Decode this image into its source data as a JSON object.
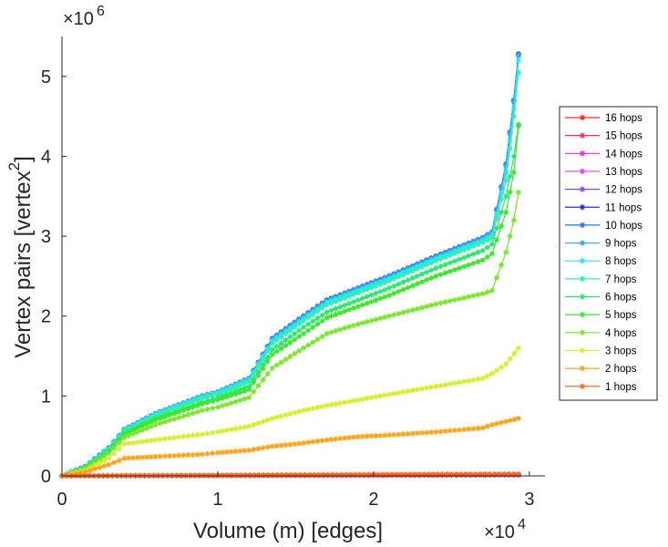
{
  "chart_data": {
    "type": "line",
    "xlabel": "Volume (m) [edges]",
    "ylabel_main": "Vertex pairs [vertex",
    "ylabel_sup": "2",
    "ylabel_end": "]",
    "x_multiplier": {
      "base": "×10",
      "exp": "4"
    },
    "y_multiplier": {
      "base": "×10",
      "exp": "6"
    },
    "xlim": [
      0,
      3.1
    ],
    "ylim": [
      0,
      5.5
    ],
    "xticks": [
      0,
      1,
      2,
      3
    ],
    "yticks": [
      0,
      1,
      2,
      3,
      4,
      5
    ],
    "xtick_labels": [
      "0",
      "1",
      "2",
      "3"
    ],
    "ytick_labels": [
      "0",
      "1",
      "2",
      "3",
      "4",
      "5"
    ],
    "legend_position": "right",
    "series": [
      {
        "name": "16 hops",
        "color": "#ff2a1a",
        "x": [
          0,
          0.5,
          1,
          1.5,
          2,
          2.5,
          2.93
        ],
        "y": [
          0,
          0.002,
          0.004,
          0.006,
          0.008,
          0.01,
          0.012
        ]
      },
      {
        "name": "15 hops",
        "color": "#ff2a6e",
        "x": [
          0,
          0.5,
          1,
          1.5,
          2,
          2.5,
          2.93
        ],
        "y": [
          0,
          0.002,
          0.004,
          0.006,
          0.008,
          0.01,
          0.012
        ]
      },
      {
        "name": "14 hops",
        "color": "#f22bd6",
        "x": [
          0,
          0.15,
          0.3,
          0.4,
          0.6,
          0.9,
          1.0,
          1.2,
          1.35,
          1.55,
          1.7,
          1.9,
          2.1,
          2.4,
          2.7,
          2.76,
          2.85,
          2.9,
          2.93
        ],
        "y": [
          0,
          0.12,
          0.35,
          0.58,
          0.78,
          1.0,
          1.05,
          1.22,
          1.72,
          2.0,
          2.2,
          2.35,
          2.5,
          2.75,
          2.98,
          3.05,
          3.9,
          4.7,
          5.28
        ]
      },
      {
        "name": "13 hops",
        "color": "#d64ae6",
        "x": [
          0,
          0.15,
          0.3,
          0.4,
          0.6,
          0.9,
          1.0,
          1.2,
          1.35,
          1.55,
          1.7,
          1.9,
          2.1,
          2.4,
          2.7,
          2.76,
          2.85,
          2.9,
          2.93
        ],
        "y": [
          0,
          0.12,
          0.35,
          0.58,
          0.78,
          1.0,
          1.05,
          1.22,
          1.72,
          2.0,
          2.2,
          2.35,
          2.5,
          2.75,
          2.98,
          3.05,
          3.9,
          4.7,
          5.28
        ]
      },
      {
        "name": "12 hops",
        "color": "#7a4df0",
        "x": [
          0,
          0.15,
          0.3,
          0.4,
          0.6,
          0.9,
          1.0,
          1.2,
          1.35,
          1.55,
          1.7,
          1.9,
          2.1,
          2.4,
          2.7,
          2.76,
          2.85,
          2.9,
          2.93
        ],
        "y": [
          0,
          0.12,
          0.35,
          0.58,
          0.78,
          1.0,
          1.05,
          1.22,
          1.72,
          2.0,
          2.2,
          2.35,
          2.5,
          2.75,
          2.98,
          3.05,
          3.9,
          4.7,
          5.28
        ]
      },
      {
        "name": "11 hops",
        "color": "#2b2be6",
        "x": [
          0,
          0.15,
          0.3,
          0.4,
          0.6,
          0.9,
          1.0,
          1.2,
          1.35,
          1.55,
          1.7,
          1.9,
          2.1,
          2.4,
          2.7,
          2.76,
          2.85,
          2.9,
          2.93
        ],
        "y": [
          0,
          0.12,
          0.35,
          0.58,
          0.78,
          1.0,
          1.05,
          1.22,
          1.72,
          2.0,
          2.2,
          2.35,
          2.5,
          2.75,
          2.98,
          3.05,
          3.9,
          4.7,
          5.28
        ]
      },
      {
        "name": "10 hops",
        "color": "#2b6ef0",
        "x": [
          0,
          0.15,
          0.3,
          0.4,
          0.6,
          0.9,
          1.0,
          1.2,
          1.35,
          1.55,
          1.7,
          1.9,
          2.1,
          2.4,
          2.7,
          2.76,
          2.85,
          2.9,
          2.93
        ],
        "y": [
          0,
          0.12,
          0.35,
          0.58,
          0.78,
          1.0,
          1.05,
          1.22,
          1.72,
          2.0,
          2.2,
          2.35,
          2.5,
          2.75,
          2.98,
          3.05,
          3.9,
          4.7,
          5.28
        ]
      },
      {
        "name": "9 hops",
        "color": "#2baef0",
        "x": [
          0,
          0.15,
          0.3,
          0.4,
          0.6,
          0.9,
          1.0,
          1.2,
          1.35,
          1.55,
          1.7,
          1.9,
          2.1,
          2.4,
          2.7,
          2.76,
          2.85,
          2.9,
          2.93
        ],
        "y": [
          0,
          0.12,
          0.35,
          0.58,
          0.78,
          1.0,
          1.05,
          1.22,
          1.71,
          1.99,
          2.19,
          2.34,
          2.49,
          2.74,
          2.97,
          3.04,
          3.88,
          4.68,
          5.26
        ]
      },
      {
        "name": "8 hops",
        "color": "#2be6f0",
        "x": [
          0,
          0.15,
          0.3,
          0.4,
          0.6,
          0.9,
          1.0,
          1.2,
          1.35,
          1.55,
          1.7,
          1.9,
          2.1,
          2.4,
          2.7,
          2.76,
          2.85,
          2.9,
          2.93
        ],
        "y": [
          0,
          0.11,
          0.34,
          0.57,
          0.77,
          0.99,
          1.04,
          1.2,
          1.69,
          1.97,
          2.17,
          2.32,
          2.47,
          2.72,
          2.95,
          3.02,
          3.8,
          4.6,
          5.2
        ]
      },
      {
        "name": "7 hops",
        "color": "#2bf0b8",
        "x": [
          0,
          0.15,
          0.3,
          0.4,
          0.6,
          0.9,
          1.0,
          1.2,
          1.35,
          1.55,
          1.7,
          1.9,
          2.1,
          2.4,
          2.7,
          2.76,
          2.85,
          2.9,
          2.93
        ],
        "y": [
          0,
          0.11,
          0.33,
          0.56,
          0.76,
          0.97,
          1.02,
          1.18,
          1.66,
          1.94,
          2.14,
          2.29,
          2.44,
          2.69,
          2.92,
          2.98,
          3.7,
          4.5,
          5.05
        ]
      },
      {
        "name": "6 hops",
        "color": "#2be66e",
        "x": [
          0,
          0.15,
          0.3,
          0.4,
          0.6,
          0.9,
          1.0,
          1.2,
          1.35,
          1.55,
          1.7,
          1.9,
          2.1,
          2.4,
          2.7,
          2.76,
          2.85,
          2.9,
          2.93
        ],
        "y": [
          0,
          0.1,
          0.31,
          0.53,
          0.72,
          0.92,
          0.98,
          1.12,
          1.58,
          1.86,
          2.05,
          2.2,
          2.35,
          2.6,
          2.82,
          2.9,
          3.5,
          4.0,
          4.4
        ]
      },
      {
        "name": "5 hops",
        "color": "#3be62b",
        "x": [
          0,
          0.15,
          0.3,
          0.4,
          0.6,
          0.9,
          1.0,
          1.2,
          1.35,
          1.55,
          1.7,
          1.9,
          2.1,
          2.4,
          2.7,
          2.76,
          2.85,
          2.9,
          2.93
        ],
        "y": [
          0,
          0.1,
          0.3,
          0.52,
          0.7,
          0.9,
          0.95,
          1.08,
          1.52,
          1.78,
          1.98,
          2.12,
          2.26,
          2.5,
          2.7,
          2.78,
          3.3,
          3.8,
          4.38
        ]
      },
      {
        "name": "4 hops",
        "color": "#7ae62b",
        "x": [
          0,
          0.15,
          0.3,
          0.4,
          0.6,
          0.9,
          1.0,
          1.2,
          1.35,
          1.55,
          1.7,
          1.9,
          2.1,
          2.4,
          2.7,
          2.76,
          2.85,
          2.9,
          2.93
        ],
        "y": [
          0,
          0.09,
          0.28,
          0.48,
          0.64,
          0.82,
          0.86,
          0.98,
          1.35,
          1.6,
          1.78,
          1.9,
          2.0,
          2.15,
          2.28,
          2.32,
          2.8,
          3.2,
          3.55
        ]
      },
      {
        "name": "3 hops",
        "color": "#d6ee2b",
        "x": [
          0,
          0.15,
          0.3,
          0.4,
          0.6,
          0.9,
          1.0,
          1.2,
          1.35,
          1.55,
          1.7,
          1.9,
          2.1,
          2.4,
          2.7,
          2.76,
          2.85,
          2.93
        ],
        "y": [
          0,
          0.07,
          0.22,
          0.4,
          0.45,
          0.52,
          0.55,
          0.62,
          0.72,
          0.82,
          0.88,
          0.95,
          1.02,
          1.12,
          1.22,
          1.28,
          1.4,
          1.6
        ]
      },
      {
        "name": "2 hops",
        "color": "#ffa41a",
        "x": [
          0,
          0.15,
          0.3,
          0.4,
          0.6,
          0.9,
          1.0,
          1.2,
          1.35,
          1.55,
          1.7,
          1.9,
          2.1,
          2.4,
          2.7,
          2.76,
          2.85,
          2.93
        ],
        "y": [
          0,
          0.05,
          0.14,
          0.22,
          0.24,
          0.27,
          0.29,
          0.32,
          0.37,
          0.41,
          0.45,
          0.49,
          0.51,
          0.55,
          0.6,
          0.64,
          0.68,
          0.72
        ]
      },
      {
        "name": "1 hops",
        "color": "#ff6a1a",
        "x": [
          0,
          0.5,
          1,
          1.5,
          2,
          2.5,
          2.93
        ],
        "y": [
          0,
          0.004,
          0.008,
          0.012,
          0.016,
          0.02,
          0.024
        ]
      }
    ]
  }
}
